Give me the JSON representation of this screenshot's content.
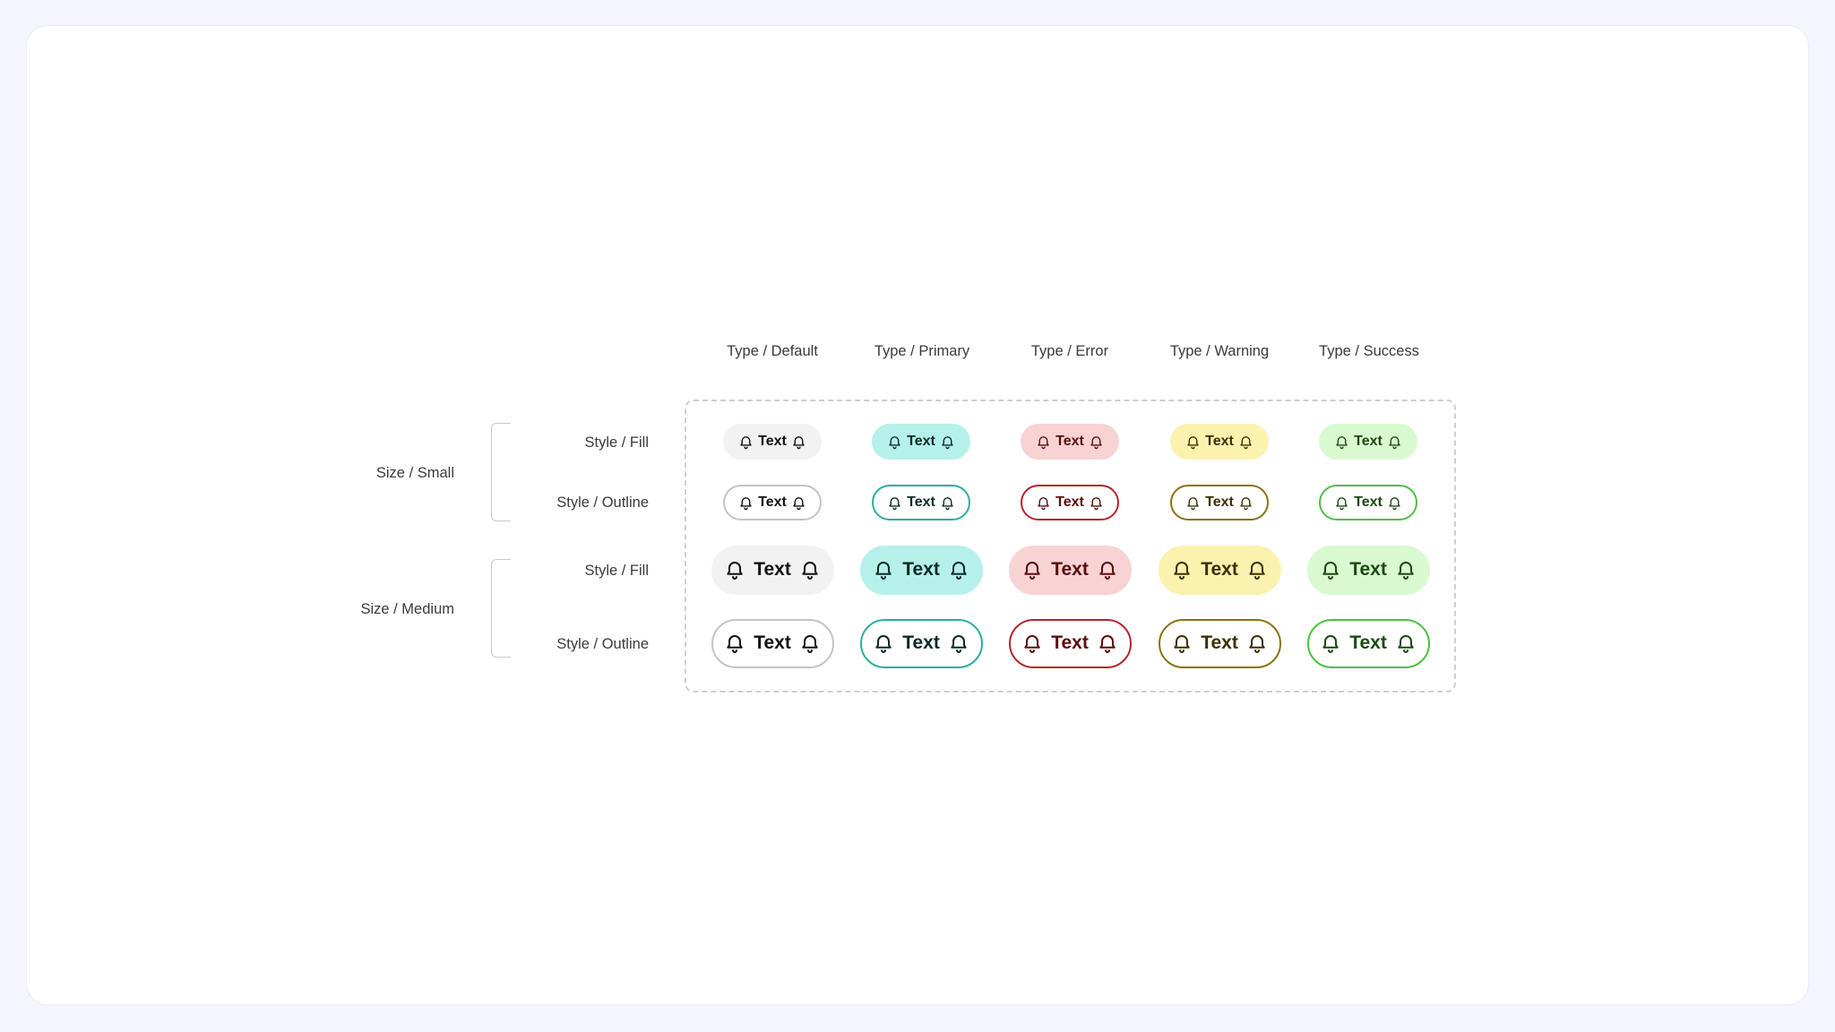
{
  "columns": [
    {
      "label": "Type / Default"
    },
    {
      "label": "Type / Primary"
    },
    {
      "label": "Type / Error"
    },
    {
      "label": "Type / Warning"
    },
    {
      "label": "Type / Success"
    }
  ],
  "size_groups": [
    {
      "label": "Size / Small"
    },
    {
      "label": "Size / Medium"
    }
  ],
  "rows": [
    {
      "label": "Style / Fill"
    },
    {
      "label": "Style / Outline"
    },
    {
      "label": "Style / Fill"
    },
    {
      "label": "Style / Outline"
    }
  ],
  "tag_text": "Text",
  "icons": {
    "leading": "bell-icon",
    "trailing": "bell-icon"
  },
  "colors": {
    "default": {
      "fill": "#f2f2f2",
      "border": "#c4c4c4",
      "text": "#111111"
    },
    "primary": {
      "fill": "#b5f1ea",
      "border": "#2aaea0",
      "text": "#0c2a27"
    },
    "error": {
      "fill": "#f8d3d3",
      "border": "#b3262c",
      "text": "#5c0c0c"
    },
    "warning": {
      "fill": "#fcf2b0",
      "border": "#8a7312",
      "text": "#3c3000"
    },
    "success": {
      "fill": "#d9f9d0",
      "border": "#4cc043",
      "text": "#1b4a12"
    }
  }
}
